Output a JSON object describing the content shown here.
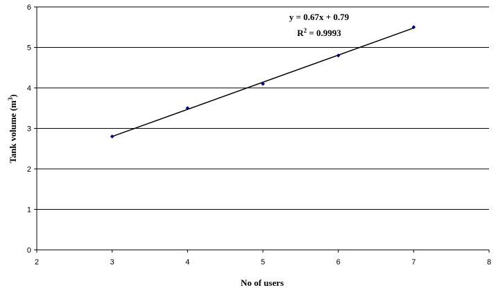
{
  "chart_data": {
    "type": "scatter",
    "xlabel": "No of users",
    "ylabel_main": "Tank volume (m",
    "ylabel_sup": "3",
    "ylabel_end": ")",
    "xlim": [
      2,
      8
    ],
    "ylim": [
      0,
      6
    ],
    "x_ticks": [
      2,
      3,
      4,
      5,
      6,
      7,
      8
    ],
    "y_ticks": [
      0,
      1,
      2,
      3,
      4,
      5,
      6
    ],
    "grid": "horizontal",
    "legend": "none",
    "series": [
      {
        "x": [
          3,
          4,
          5,
          6,
          7
        ],
        "y": [
          2.8,
          3.5,
          4.1,
          4.8,
          5.5
        ],
        "color": "#000080"
      }
    ],
    "trendline": {
      "type": "linear",
      "slope": 0.67,
      "intercept": 0.79,
      "x_range": [
        3,
        7
      ],
      "color": "#000000"
    },
    "annotations": {
      "equation": "y = 0.67x + 0.79",
      "r2_prefix": "R",
      "r2_sup": "2",
      "r2_suffix": " = 0.9993"
    }
  }
}
